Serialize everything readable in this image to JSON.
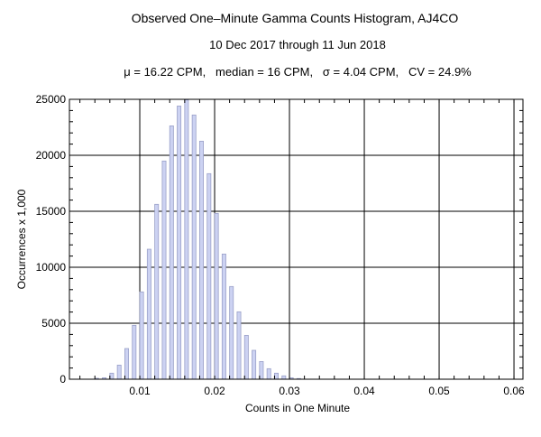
{
  "chart_data": {
    "type": "bar",
    "title": "Observed One–Minute Gamma Counts Histogram, AJ4CO",
    "subtitle": "10 Dec 2017 through 11 Jun 2018",
    "stats_line": "μ = 16.22 CPM,   median = 16 CPM,   σ = 4.04 CPM,   CV = 24.9%",
    "xlabel": "Counts in One Minute",
    "ylabel": "Occurrences x 1,000",
    "xlim": [
      0.0006,
      0.0612
    ],
    "ylim": [
      0,
      25000
    ],
    "xticks": [
      "0.01",
      "0.02",
      "0.03",
      "0.04",
      "0.05",
      "0.06"
    ],
    "xtick_values": [
      0.01,
      0.02,
      0.03,
      0.04,
      0.05,
      0.06
    ],
    "yticks": [
      "0",
      "5000",
      "10000",
      "15000",
      "20000",
      "25000"
    ],
    "ytick_values": [
      0,
      5000,
      10000,
      15000,
      20000,
      25000
    ],
    "grid": true,
    "bar_color": "#ccd2f2",
    "bar_edge_color": "#9aa0c8",
    "x": [
      0.004,
      0.005,
      0.006,
      0.007,
      0.008,
      0.009,
      0.01,
      0.011,
      0.012,
      0.013,
      0.014,
      0.015,
      0.016,
      0.017,
      0.018,
      0.019,
      0.02,
      0.021,
      0.022,
      0.023,
      0.024,
      0.025,
      0.026,
      0.027,
      0.028,
      0.029,
      0.03,
      0.031
    ],
    "values": [
      80,
      130,
      540,
      1260,
      2740,
      4810,
      7800,
      11610,
      15620,
      19490,
      22630,
      24400,
      24950,
      23600,
      21260,
      18360,
      14810,
      11180,
      8280,
      6020,
      3920,
      2580,
      1580,
      940,
      540,
      300,
      130,
      60
    ]
  }
}
